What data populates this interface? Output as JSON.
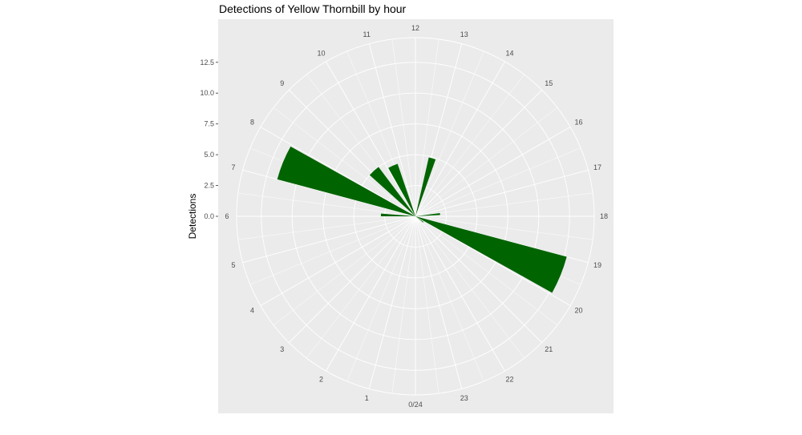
{
  "chart_data": {
    "type": "polar-bar",
    "title": "Detections of Yellow Thornbill by hour",
    "ylabel": "Detections",
    "ytick_labels": [
      "0.0",
      "2.5",
      "5.0",
      "7.5",
      "10.0",
      "12.5"
    ],
    "ytick_values": [
      0,
      2.5,
      5,
      7.5,
      10,
      12.5
    ],
    "radial_max": 14.5,
    "hour_labels": [
      "0/24",
      "1",
      "2",
      "3",
      "4",
      "5",
      "6",
      "7",
      "8",
      "9",
      "10",
      "11",
      "12",
      "13",
      "14",
      "15",
      "16",
      "17",
      "18",
      "19",
      "20",
      "21",
      "22",
      "23"
    ],
    "bars": [
      {
        "start": 6.0,
        "end": 6.3,
        "value": 2.8
      },
      {
        "start": 7.0,
        "end": 7.95,
        "value": 11.6
      },
      {
        "start": 8.8,
        "end": 9.55,
        "value": 5.0
      },
      {
        "start": 10.05,
        "end": 10.75,
        "value": 4.5
      },
      {
        "start": 12.85,
        "end": 13.3,
        "value": 4.9
      },
      {
        "start": 17.5,
        "end": 17.8,
        "value": 2.0
      },
      {
        "start": 19.0,
        "end": 19.95,
        "value": 12.7
      },
      {
        "start": 20.3,
        "end": 20.6,
        "value": 0.8
      }
    ],
    "colors": {
      "panel": "#ebebeb",
      "grid": "#ffffff",
      "bar": "#006400"
    },
    "grid": true
  }
}
